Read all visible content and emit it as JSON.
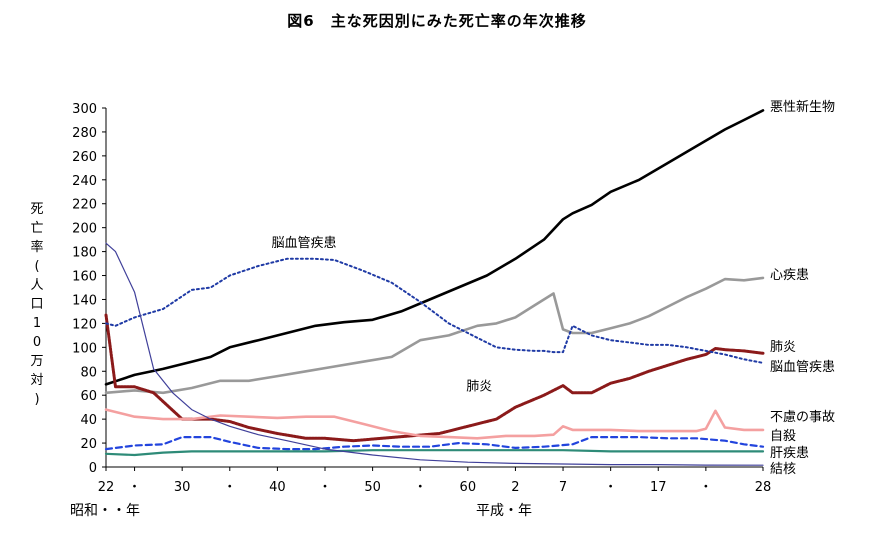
{
  "title": "図6　主な死因別にみた死亡率の年次推移",
  "y_axis_title": "死亡率(人口10万対)",
  "x_captions": {
    "showa": "昭和・・年",
    "heisei": "平成・年"
  },
  "chart_data": {
    "type": "line",
    "title": "図6　主な死因別にみた死亡率の年次推移",
    "xlabel": "",
    "ylabel": "死亡率(人口10万対)",
    "ylim": [
      0,
      300
    ],
    "yticks": [
      0,
      20,
      40,
      60,
      80,
      100,
      120,
      140,
      160,
      180,
      200,
      220,
      240,
      260,
      280,
      300
    ],
    "xlim": [
      1947,
      2016
    ],
    "x_tick_labels": [
      {
        "year": 1947,
        "label": "22"
      },
      {
        "year": 1950,
        "label": "・"
      },
      {
        "year": 1955,
        "label": "30"
      },
      {
        "year": 1960,
        "label": "・"
      },
      {
        "year": 1965,
        "label": "40"
      },
      {
        "year": 1970,
        "label": "・"
      },
      {
        "year": 1975,
        "label": "50"
      },
      {
        "year": 1980,
        "label": "・"
      },
      {
        "year": 1985,
        "label": "60"
      },
      {
        "year": 1990,
        "label": "2"
      },
      {
        "year": 1995,
        "label": "7"
      },
      {
        "year": 2000,
        "label": "・"
      },
      {
        "year": 2005,
        "label": "17"
      },
      {
        "year": 2010,
        "label": "・"
      },
      {
        "year": 2016,
        "label": "28"
      }
    ],
    "series": [
      {
        "name": "悪性新生物",
        "color": "#000000",
        "width": 2.6,
        "dash": "",
        "x": [
          1947,
          1950,
          1953,
          1956,
          1958,
          1960,
          1963,
          1966,
          1969,
          1972,
          1975,
          1978,
          1981,
          1984,
          1987,
          1990,
          1993,
          1995,
          1996,
          1998,
          2000,
          2003,
          2006,
          2009,
          2012,
          2014,
          2016
        ],
        "y": [
          69,
          77,
          82,
          88,
          92,
          100,
          106,
          112,
          118,
          121,
          123,
          130,
          140,
          150,
          160,
          174,
          190,
          207,
          212,
          219,
          230,
          240,
          254,
          268,
          282,
          290,
          298
        ]
      },
      {
        "name": "心疾患",
        "color": "#999999",
        "width": 2.6,
        "dash": "",
        "x": [
          1947,
          1950,
          1953,
          1956,
          1959,
          1962,
          1965,
          1968,
          1971,
          1974,
          1977,
          1980,
          1983,
          1986,
          1988,
          1990,
          1992,
          1994,
          1995,
          1996,
          1998,
          2000,
          2002,
          2004,
          2006,
          2008,
          2010,
          2012,
          2014,
          2016
        ],
        "y": [
          62,
          64,
          62,
          66,
          72,
          72,
          76,
          80,
          84,
          88,
          92,
          106,
          110,
          118,
          120,
          125,
          135,
          145,
          115,
          112,
          112,
          116,
          120,
          126,
          134,
          142,
          149,
          157,
          156,
          158
        ]
      },
      {
        "name": "肺炎",
        "color": "#8b1a1a",
        "width": 3.0,
        "dash": "2,1",
        "x": [
          1947,
          1948,
          1950,
          1952,
          1955,
          1958,
          1960,
          1962,
          1965,
          1968,
          1970,
          1973,
          1976,
          1979,
          1982,
          1985,
          1988,
          1990,
          1993,
          1995,
          1996,
          1998,
          2000,
          2002,
          2004,
          2006,
          2008,
          2010,
          2011,
          2012,
          2014,
          2016
        ],
        "y": [
          127,
          67,
          67,
          62,
          40,
          40,
          38,
          33,
          28,
          24,
          24,
          22,
          24,
          26,
          28,
          34,
          40,
          50,
          60,
          68,
          62,
          62,
          70,
          74,
          80,
          85,
          90,
          94,
          99,
          98,
          97,
          95
        ]
      },
      {
        "name": "脳血管疾患",
        "color": "#1f3aa5",
        "width": 2.0,
        "dash": "2,3",
        "x": [
          1947,
          1948,
          1950,
          1953,
          1956,
          1958,
          1960,
          1963,
          1966,
          1969,
          1971,
          1974,
          1977,
          1980,
          1983,
          1986,
          1988,
          1990,
          1992,
          1993,
          1994,
          1995,
          1996,
          1998,
          2000,
          2002,
          2004,
          2006,
          2008,
          2010,
          2012,
          2014,
          2016
        ],
        "y": [
          120,
          118,
          125,
          132,
          148,
          150,
          160,
          168,
          174,
          174,
          173,
          164,
          154,
          138,
          120,
          108,
          100,
          98,
          97,
          97,
          96,
          96,
          118,
          110,
          106,
          104,
          102,
          102,
          100,
          97,
          94,
          90,
          87
        ]
      },
      {
        "name": "不慮の事故",
        "color": "#f4a0a0",
        "width": 2.6,
        "dash": "",
        "x": [
          1947,
          1950,
          1953,
          1956,
          1959,
          1962,
          1965,
          1968,
          1971,
          1974,
          1977,
          1980,
          1983,
          1986,
          1989,
          1992,
          1994,
          1995,
          1996,
          1998,
          2000,
          2003,
          2006,
          2009,
          2010,
          2011,
          2012,
          2014,
          2016
        ],
        "y": [
          48,
          42,
          40,
          40,
          43,
          42,
          41,
          42,
          42,
          36,
          30,
          26,
          25,
          24,
          26,
          26,
          27,
          34,
          31,
          31,
          31,
          30,
          30,
          30,
          32,
          47,
          33,
          31,
          31
        ]
      },
      {
        "name": "自殺",
        "color": "#2244dd",
        "width": 2.2,
        "dash": "6,4",
        "x": [
          1947,
          1950,
          1953,
          1955,
          1958,
          1960,
          1963,
          1966,
          1969,
          1972,
          1975,
          1978,
          1981,
          1984,
          1987,
          1990,
          1993,
          1996,
          1998,
          2000,
          2003,
          2006,
          2009,
          2012,
          2014,
          2016
        ],
        "y": [
          15,
          18,
          19,
          25,
          25,
          21,
          16,
          15,
          15,
          17,
          18,
          17,
          17,
          20,
          19,
          16,
          17,
          19,
          25,
          25,
          25,
          24,
          24,
          22,
          19,
          17
        ]
      },
      {
        "name": "肝疾患",
        "color": "#2e8b78",
        "width": 2.2,
        "dash": "",
        "x": [
          1947,
          1950,
          1953,
          1956,
          1960,
          1965,
          1970,
          1975,
          1980,
          1985,
          1990,
          1995,
          2000,
          2005,
          2010,
          2016
        ],
        "y": [
          11,
          10,
          12,
          13,
          13,
          13,
          13,
          14,
          14,
          14,
          14,
          14,
          13,
          13,
          13,
          13
        ]
      },
      {
        "name": "結核",
        "color": "#40409a",
        "width": 1.2,
        "dash": "",
        "x": [
          1947,
          1948,
          1950,
          1952,
          1954,
          1956,
          1958,
          1960,
          1963,
          1966,
          1970,
          1975,
          1980,
          1985,
          1990,
          1995,
          2000,
          2005,
          2010,
          2016
        ],
        "y": [
          187,
          180,
          146,
          82,
          62,
          48,
          40,
          34,
          27,
          22,
          15,
          10,
          6,
          4,
          3,
          2.5,
          2,
          2,
          1.6,
          1.5
        ]
      }
    ],
    "inline_labels": [
      {
        "text": "脳血管疾患",
        "x": 1967.8,
        "y": 184
      },
      {
        "text": "肺炎",
        "x": 1986.2,
        "y": 64
      }
    ],
    "legend_placement": "right-end"
  }
}
